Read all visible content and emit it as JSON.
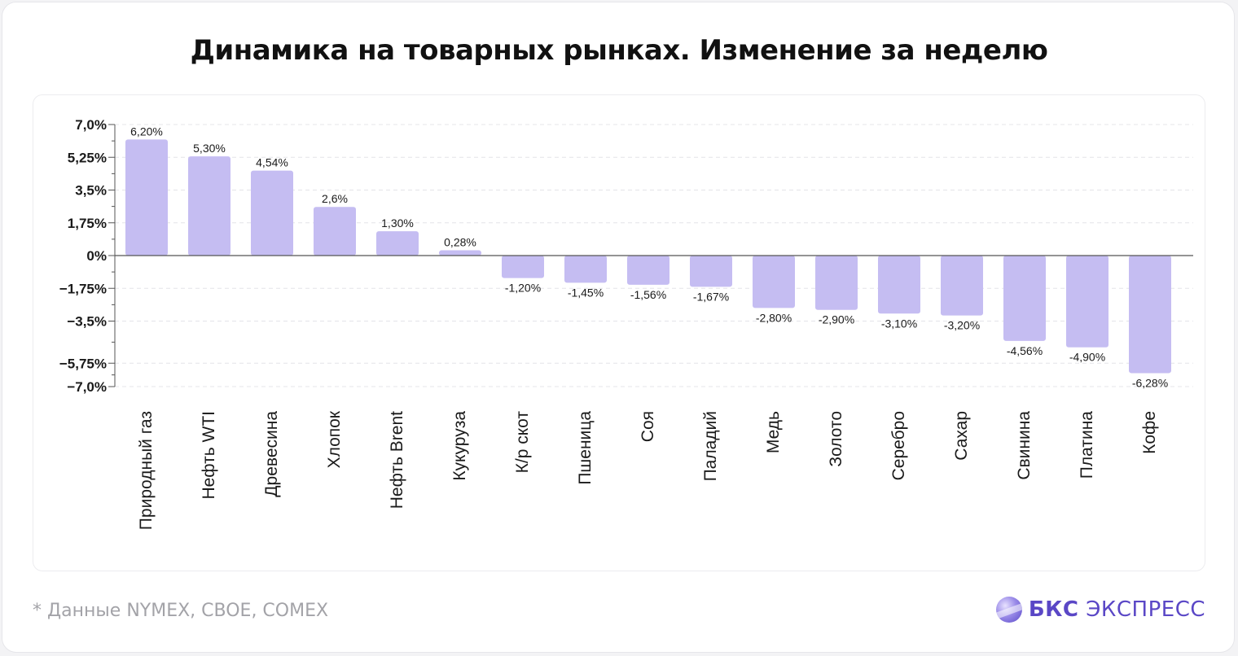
{
  "title": "Динамика на товарных рынках. Изменение за неделю",
  "footnote": "* Данные NYMEX, CBOE, COMEX",
  "brand": {
    "bold": "БКС",
    "regular": "ЭКСПРЕСС",
    "logo_icon": "bcs-sphere-icon"
  },
  "colors": {
    "bar": "#c5bdf2",
    "axis": "#555555",
    "grid": "#e4e4e8",
    "text": "#1a1a1a"
  },
  "chart_data": {
    "type": "bar",
    "categories": [
      "Природный газ",
      "Нефть WTI",
      "Древесина",
      "Хлопок",
      "Нефть Brent",
      "Кукуруза",
      "К/р скот",
      "Пшеница",
      "Соя",
      "Паладий",
      "Медь",
      "Золото",
      "Серебро",
      "Сахар",
      "Свинина",
      "Платина",
      "Кофе"
    ],
    "values": [
      6.2,
      5.3,
      4.54,
      2.6,
      1.3,
      0.28,
      -1.2,
      -1.45,
      -1.56,
      -1.67,
      -2.8,
      -2.9,
      -3.1,
      -3.2,
      -4.56,
      -4.9,
      -6.28
    ],
    "data_labels": [
      "6,20%",
      "5,30%",
      "4,54%",
      "2,6%",
      "1,30%",
      "0,28%",
      "-1,20%",
      "-1,45%",
      "-1,56%",
      "-1,67%",
      "-2,80%",
      "-2,90%",
      "-3,10%",
      "-3,20%",
      "-4,56%",
      "-4,90%",
      "-6,28%"
    ],
    "yticks": [
      7.0,
      5.25,
      3.5,
      1.75,
      0,
      -1.75,
      -3.5,
      -5.75,
      -7.0
    ],
    "ytick_labels": [
      "7,0%",
      "5,25%",
      "3,5%",
      "1,75%",
      "0%",
      "−1,75%",
      "−3,5%",
      "−5,75%",
      "−7,0%"
    ],
    "ylim": [
      -7.0,
      7.0
    ],
    "grid": true
  }
}
